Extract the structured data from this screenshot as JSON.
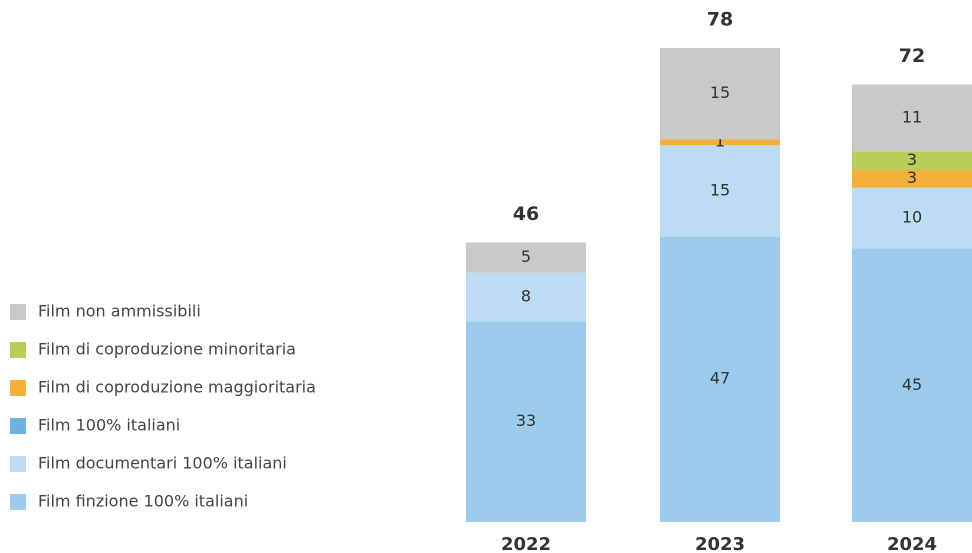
{
  "chart_data": {
    "type": "stacked_bar",
    "categories": [
      "2022",
      "2023",
      "2024"
    ],
    "totals": [
      46,
      78,
      72
    ],
    "series": [
      {
        "name": "Film finzione 100% italiani",
        "color": "#9ccbee",
        "values": [
          33,
          47,
          45
        ]
      },
      {
        "name": "Film documentari 100% italiani",
        "color": "#bcdcf3",
        "values": [
          8,
          15,
          10
        ]
      },
      {
        "name": "Film 100% italiani",
        "color": "#6cb1e2",
        "values": [
          null,
          null,
          null
        ]
      },
      {
        "name": "Film di coproduzione maggioritaria",
        "color": "#f2b03c",
        "values": [
          null,
          1,
          3
        ]
      },
      {
        "name": "Film di coproduzione minoritaria",
        "color": "#b5cf5a",
        "values": [
          null,
          null,
          3
        ]
      },
      {
        "name": "Film non ammissibili",
        "color": "#c9c9c9",
        "values": [
          5,
          15,
          11
        ]
      }
    ]
  }
}
